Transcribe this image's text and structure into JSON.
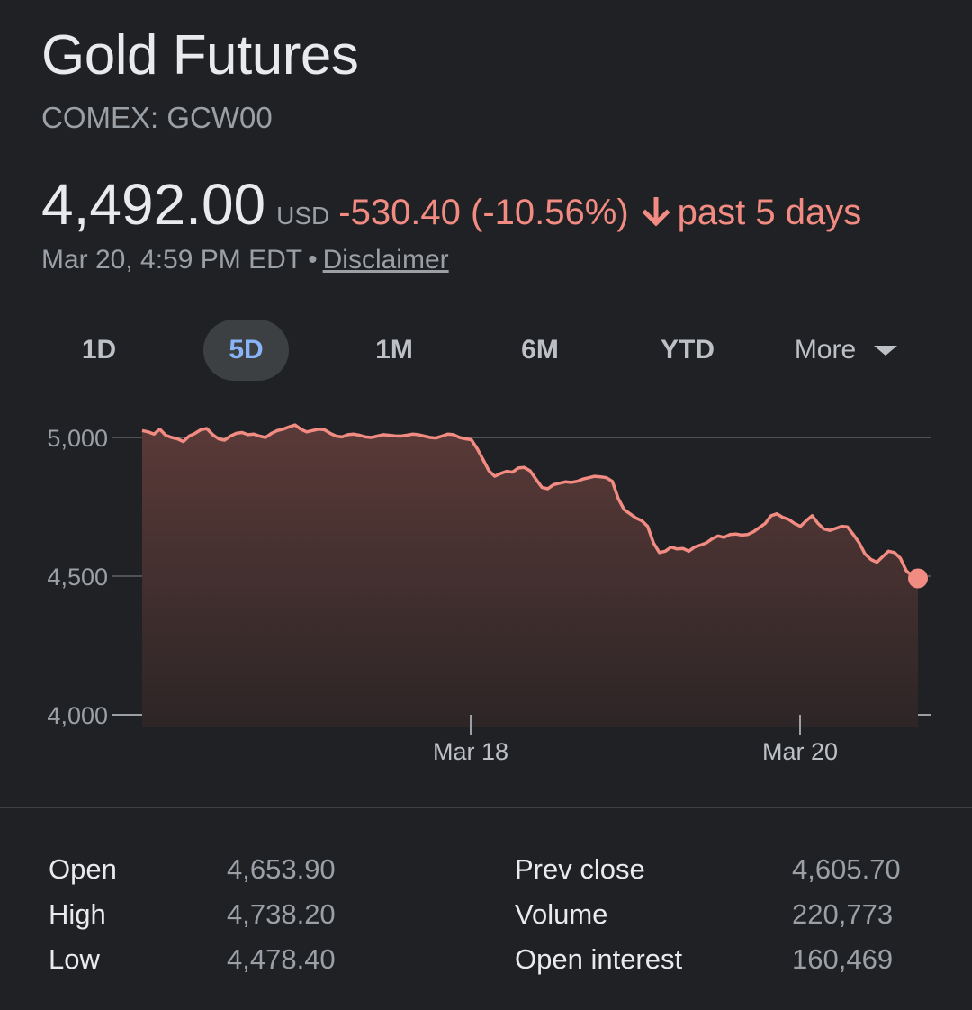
{
  "header": {
    "title": "Gold Futures",
    "exchange": "COMEX: GCW00"
  },
  "quote": {
    "price": "4,492.00",
    "currency": "USD",
    "change": "-530.40 (-10.56%)",
    "direction_icon": "arrow-down-icon",
    "period": "past 5 days",
    "timestamp": "Mar 20, 4:59 PM EDT",
    "separator": "•",
    "disclaimer": "Disclaimer"
  },
  "ranges": {
    "tabs": [
      "1D",
      "5D",
      "1M",
      "6M",
      "YTD"
    ],
    "active": "5D",
    "more_label": "More"
  },
  "colors": {
    "background": "#202124",
    "line": "#f28b82",
    "active_tab": "#8ab4f8"
  },
  "chart_data": {
    "type": "area",
    "y_ticks": [
      "5,000",
      "4,500",
      "4,000"
    ],
    "y_tick_values": [
      5000,
      4500,
      4000
    ],
    "x_tick_labels": [
      "Mar 18",
      "Mar 20"
    ],
    "ylim": [
      4000,
      5030
    ],
    "grid": true,
    "series": [
      {
        "values": [
          5025,
          5020,
          5012,
          5030,
          5008,
          5000,
          4995,
          4985,
          5005,
          5015,
          5028,
          5032,
          5010,
          4995,
          4990,
          5005,
          5015,
          5018,
          5010,
          5012,
          5005,
          5000,
          5015,
          5025,
          5030,
          5038,
          5045,
          5030,
          5020,
          5025,
          5030,
          5028,
          5015,
          5005,
          5002,
          5010,
          5012,
          5008,
          5002,
          5000,
          5005,
          5010,
          5008,
          5006,
          5005,
          5008,
          5012,
          5010,
          5005,
          5000,
          4998,
          5005,
          5012,
          5010,
          5000,
          4995,
          4992,
          4960,
          4920,
          4880,
          4860,
          4870,
          4878,
          4875,
          4890,
          4892,
          4880,
          4850,
          4820,
          4815,
          4830,
          4835,
          4840,
          4838,
          4842,
          4850,
          4855,
          4860,
          4858,
          4855,
          4842,
          4780,
          4740,
          4725,
          4710,
          4700,
          4680,
          4620,
          4585,
          4590,
          4605,
          4598,
          4600,
          4590,
          4605,
          4612,
          4620,
          4635,
          4645,
          4640,
          4650,
          4652,
          4648,
          4650,
          4660,
          4675,
          4690,
          4718,
          4725,
          4712,
          4705,
          4690,
          4680,
          4700,
          4718,
          4690,
          4670,
          4665,
          4672,
          4680,
          4678,
          4650,
          4620,
          4580,
          4560,
          4550,
          4570,
          4590,
          4585,
          4565,
          4520,
          4500,
          4492
        ]
      }
    ]
  },
  "stats": {
    "left": [
      {
        "label": "Open",
        "value": "4,653.90"
      },
      {
        "label": "High",
        "value": "4,738.20"
      },
      {
        "label": "Low",
        "value": "4,478.40"
      }
    ],
    "right": [
      {
        "label": "Prev close",
        "value": "4,605.70"
      },
      {
        "label": "Volume",
        "value": "220,773"
      },
      {
        "label": "Open interest",
        "value": "160,469"
      }
    ]
  }
}
